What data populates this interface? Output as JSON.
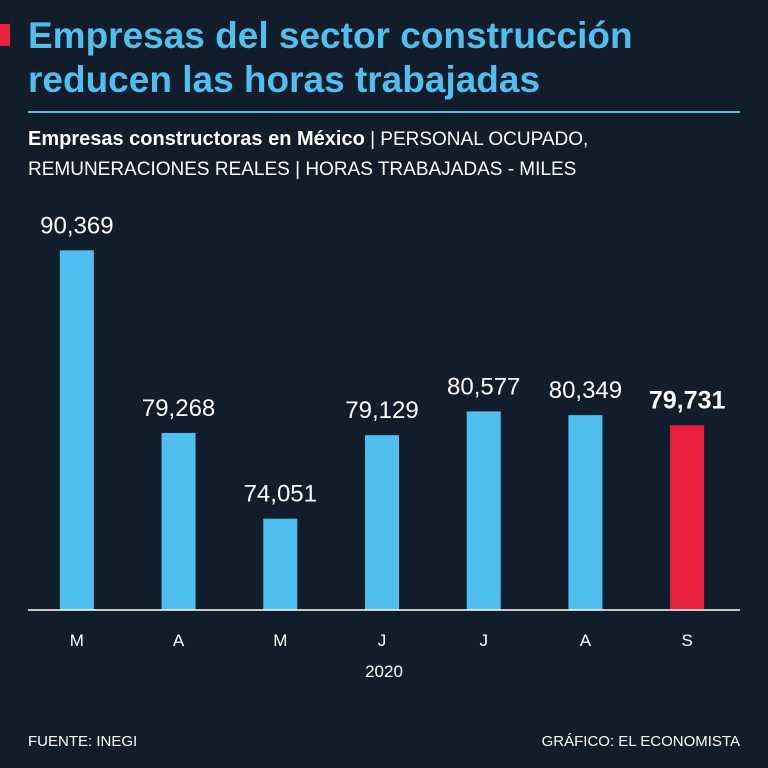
{
  "header": {
    "title_line1": "Empresas del sector construcción",
    "title_line2": "reducen las horas trabajadas",
    "subtitle_bold": "Empresas constructoras en México",
    "subtitle_rest": " | PERSONAL OCUPADO, REMUNERACIONES REALES | HORAS TRABAJADAS - MILES"
  },
  "colors": {
    "background": "#121d2b",
    "bar": "#4fbfef",
    "highlight": "#e8213f",
    "title": "#4fbfef"
  },
  "chart_data": {
    "type": "bar",
    "title": "Empresas constructoras en México",
    "categories": [
      "M",
      "A",
      "M",
      "J",
      "J",
      "A",
      "S"
    ],
    "values": [
      90369,
      79268,
      74051,
      79129,
      80577,
      80349,
      79731
    ],
    "value_labels": [
      "90,369",
      "79,268",
      "74,051",
      "79,129",
      "80,577",
      "80,349",
      "79,731"
    ],
    "highlight_index": 6,
    "xlabel": "2020",
    "ylabel": "",
    "ylim": [
      68500,
      91000
    ]
  },
  "footer": {
    "source": "FUENTE: INEGI",
    "credit": "GRÁFICO: EL ECONOMISTA"
  }
}
